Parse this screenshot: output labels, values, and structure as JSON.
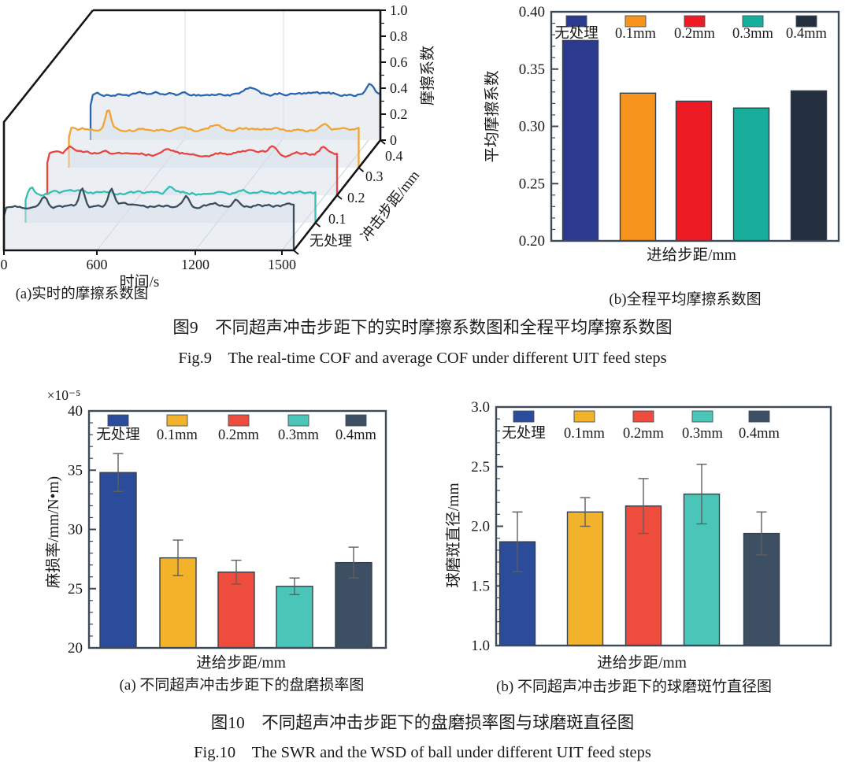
{
  "fig9": {
    "caption_zh": "图9　不同超声冲击步距下的实时摩擦系数图和全程平均摩擦系数图",
    "caption_en": "Fig.9　The real-time COF and average COF under different UIT feed steps"
  },
  "fig10": {
    "caption_zh": "图10　不同超声冲击步距下的盘磨损率图与球磨斑直径图",
    "caption_en": "Fig.10　The SWR and the WSD of ball under different UIT feed steps"
  },
  "legend": [
    "无处理",
    "0.1mm",
    "0.2mm",
    "0.3mm",
    "0.4mm"
  ],
  "chart_data": [
    {
      "id": "fig9a",
      "type": "line",
      "variant": "3d-waterfall",
      "title": "(a)实时的摩擦系数图",
      "xlabel": "时间/s",
      "x_ticks": [
        "0",
        "600",
        "1200",
        "1500"
      ],
      "x_range": [
        0,
        1500
      ],
      "zlabel": "摩擦系数",
      "z_ticks": [
        "0",
        "0.2",
        "0.4",
        "0.6",
        "0.8",
        "1.0"
      ],
      "z_range": [
        0,
        1.0
      ],
      "depth_label": "冲击步距/mm",
      "depth_ticks": [
        "无处理",
        "0.1",
        "0.2",
        "0.3",
        "0.4"
      ],
      "series": [
        {
          "name": "无处理",
          "color": "#2a66ae",
          "approx_mean_cof": 0.35
        },
        {
          "name": "0.1",
          "color": "#f2a431",
          "approx_mean_cof": 0.29
        },
        {
          "name": "0.2",
          "color": "#e64541",
          "approx_mean_cof": 0.32
        },
        {
          "name": "0.3",
          "color": "#36bfb2",
          "approx_mean_cof": 0.23
        },
        {
          "name": "0.4",
          "color": "#3a4f5e",
          "approx_mean_cof": 0.34
        }
      ]
    },
    {
      "id": "fig9b",
      "type": "bar",
      "title": "(b)全程平均摩擦系数图",
      "xlabel": "进给步距/mm",
      "ylabel": "平均摩擦系数",
      "categories": [
        "无处理",
        "0.1mm",
        "0.2mm",
        "0.3mm",
        "0.4mm"
      ],
      "values": [
        0.375,
        0.329,
        0.322,
        0.316,
        0.331
      ],
      "ylim": [
        0.2,
        0.4
      ],
      "y_ticks": [
        "0.40",
        "0.35",
        "0.30",
        "0.25",
        "0.20"
      ],
      "colors": [
        "#2b3a8f",
        "#f7941d",
        "#ed1c24",
        "#17ae9c",
        "#232f3e"
      ]
    },
    {
      "id": "fig10a",
      "type": "bar",
      "title": "(a) 不同超声冲击步距下的盘磨损率图",
      "xlabel": "进给步距/mm",
      "ylabel": "麻损率/mm/N•m)",
      "y_multiplier": "×10⁻⁵",
      "categories": [
        "无处理",
        "0.1mm",
        "0.2mm",
        "0.3mm",
        "0.4mm"
      ],
      "values": [
        34.8,
        27.6,
        26.4,
        25.2,
        27.2
      ],
      "errors": [
        1.6,
        1.5,
        1.0,
        0.7,
        1.3
      ],
      "ylim": [
        20,
        40
      ],
      "y_ticks": [
        "40",
        "35",
        "30",
        "25",
        "20"
      ],
      "colors": [
        "#2b4b9b",
        "#f2b32a",
        "#ee4d3d",
        "#4cc5b9",
        "#3c4f63"
      ]
    },
    {
      "id": "fig10b",
      "type": "bar",
      "title": "(b) 不同超声冲击步距下的球磨斑竹直径图",
      "xlabel": "进给步距/mm",
      "ylabel": "球磨斑直径/mm",
      "categories": [
        "无处理",
        "0.1mm",
        "0.2mm",
        "0.3mm",
        "0.4mm"
      ],
      "values": [
        1.87,
        2.12,
        2.17,
        2.27,
        1.94
      ],
      "errors": [
        0.25,
        0.12,
        0.23,
        0.25,
        0.18
      ],
      "ylim": [
        1.0,
        3.0
      ],
      "y_ticks": [
        "3.0",
        "2.5",
        "2.0",
        "1.5",
        "1.0"
      ],
      "colors": [
        "#2b4b9b",
        "#f2b32a",
        "#ee4d3d",
        "#4cc5b9",
        "#3c4f63"
      ]
    }
  ]
}
